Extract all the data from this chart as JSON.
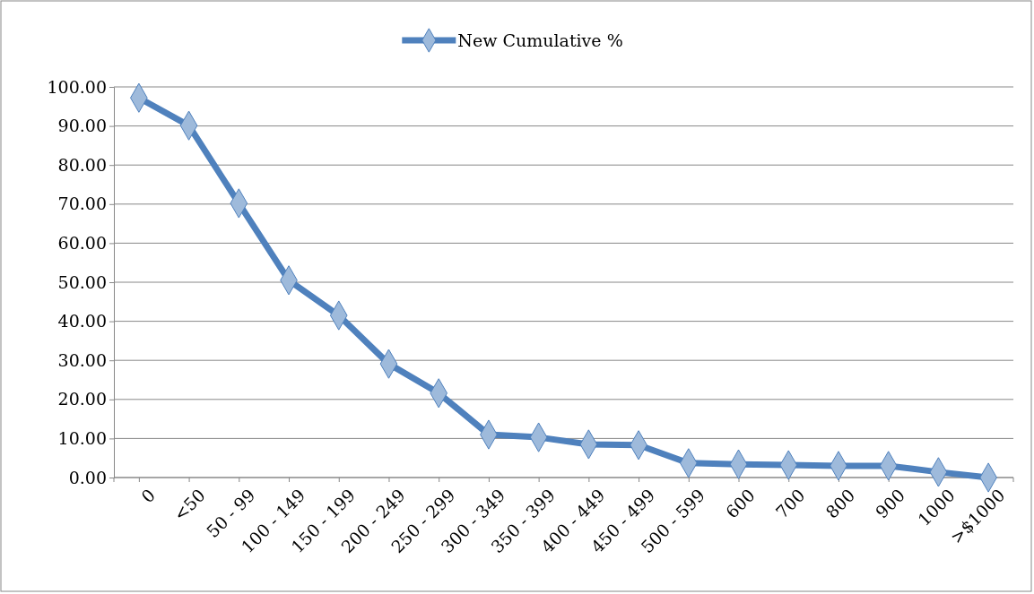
{
  "chart_data": {
    "type": "line",
    "categories": [
      "0",
      "<50",
      "50 - 99",
      "100 - 149",
      "150 - 199",
      "200 - 249",
      "250 - 299",
      "300 - 349",
      "350 - 399",
      "400 - 449",
      "450 - 499",
      "500 - 599",
      "600",
      "700",
      "800",
      "900",
      "1000",
      ">$1000"
    ],
    "series": [
      {
        "name": "New Cumulative %",
        "color": "#4f81bd",
        "values": [
          97.2,
          90.1,
          70.2,
          50.5,
          41.5,
          29.1,
          21.6,
          11.0,
          10.3,
          8.5,
          8.3,
          3.7,
          3.4,
          3.2,
          3.0,
          3.0,
          1.4,
          0
        ]
      }
    ],
    "ylim": [
      0,
      100
    ],
    "yticks": [
      {
        "value": 0,
        "label": "0.00"
      },
      {
        "value": 10,
        "label": "10.00"
      },
      {
        "value": 20,
        "label": "20.00"
      },
      {
        "value": 30,
        "label": "30.00"
      },
      {
        "value": 40,
        "label": "40.00"
      },
      {
        "value": 50,
        "label": "50.00"
      },
      {
        "value": 60,
        "label": "60.00"
      },
      {
        "value": 70,
        "label": "70.00"
      },
      {
        "value": 80,
        "label": "80.00"
      },
      {
        "value": 90,
        "label": "90.00"
      },
      {
        "value": 100,
        "label": "100.00"
      }
    ],
    "grid": "y",
    "legend": "top",
    "marker": "diamond",
    "line_style": "solid"
  }
}
